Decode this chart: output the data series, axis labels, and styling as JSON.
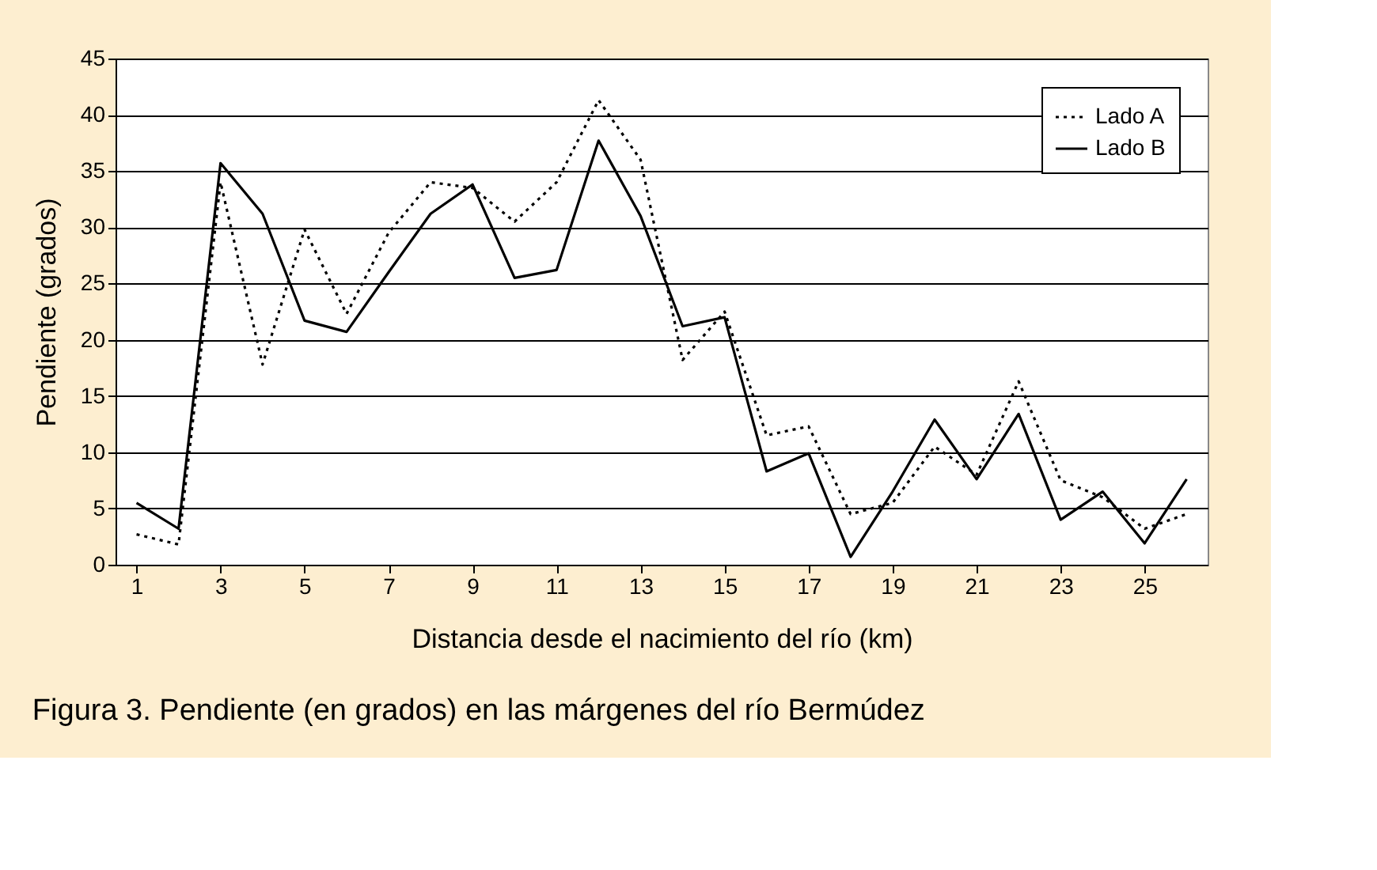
{
  "chart_data": {
    "type": "line",
    "title": "Figura 3. Pendiente (en grados) en las márgenes del río Bermúdez",
    "xlabel": "Distancia desde el nacimiento del río (km)",
    "ylabel": "Pendiente (grados)",
    "x": [
      1,
      2,
      3,
      4,
      5,
      6,
      7,
      8,
      9,
      10,
      11,
      12,
      13,
      14,
      15,
      16,
      17,
      18,
      19,
      20,
      21,
      22,
      23,
      24,
      25,
      26
    ],
    "xlim": [
      0.5,
      26.5
    ],
    "xticks": [
      1,
      3,
      5,
      7,
      9,
      11,
      13,
      15,
      17,
      19,
      21,
      23,
      25
    ],
    "series": [
      {
        "name": "Lado A",
        "color": "#000000",
        "line_style": "dotted",
        "values": [
          2.7,
          1.8,
          34,
          17.8,
          29.8,
          22.3,
          29.5,
          34,
          33.5,
          30.5,
          34,
          41.3,
          36,
          18.2,
          22.5,
          11.5,
          12.3,
          4.5,
          5.5,
          10.5,
          8,
          16.3,
          7.5,
          6,
          3.2,
          4.5
        ]
      },
      {
        "name": "Lado B",
        "color": "#000000",
        "line_style": "solid",
        "values": [
          5.5,
          3.2,
          35.7,
          31.2,
          21.7,
          20.7,
          26,
          31.2,
          33.8,
          25.5,
          26.2,
          37.7,
          31,
          21.2,
          22,
          8.3,
          9.9,
          0.7,
          6.5,
          12.9,
          7.6,
          13.4,
          4,
          6.5,
          1.9,
          7.6
        ]
      }
    ],
    "ylim": [
      0,
      45
    ],
    "yticks": [
      0,
      5,
      10,
      15,
      20,
      25,
      30,
      35,
      40,
      45
    ],
    "grid": "y",
    "legend": "top right",
    "marker": "none"
  }
}
